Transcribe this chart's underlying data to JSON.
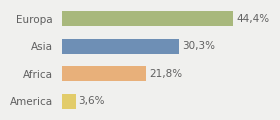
{
  "categories": [
    "Europa",
    "Asia",
    "Africa",
    "America"
  ],
  "values": [
    44.4,
    30.3,
    21.8,
    3.6
  ],
  "labels": [
    "44,4%",
    "30,3%",
    "21,8%",
    "3,6%"
  ],
  "bar_colors": [
    "#a8b87c",
    "#6e8fb5",
    "#e8b07a",
    "#e2cc6a"
  ],
  "background_color": "#f0f0ee",
  "xlim": [
    0,
    55
  ],
  "bar_height": 0.55,
  "label_fontsize": 7.5,
  "category_fontsize": 7.5,
  "label_color": "#606060",
  "figsize": [
    2.8,
    1.2
  ],
  "dpi": 100
}
